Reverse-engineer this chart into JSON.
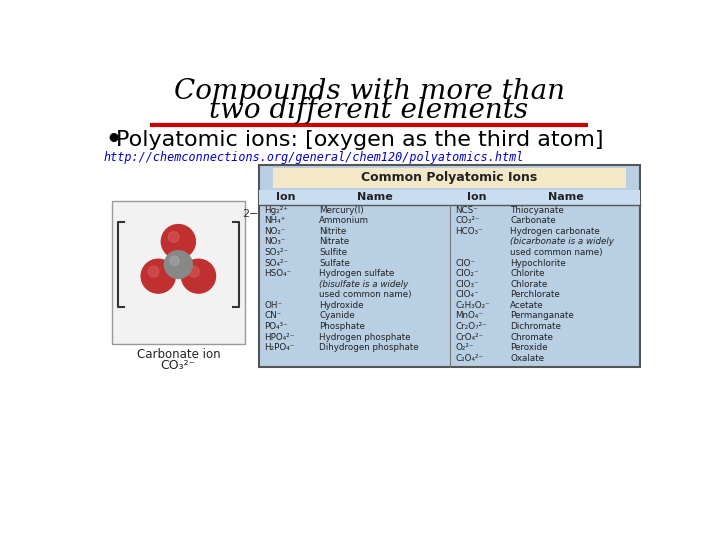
{
  "title_line1": "Compounds with more than",
  "title_line2": "two different elements",
  "bullet_text": "Polyatomic ions: [oxygen as the third atom]",
  "link_text": "http://chemconnections.org/general/chem120/polyatomics.html",
  "table_title": "Common Polyatomic Ions",
  "col_headers": [
    "Ion",
    "Name",
    "Ion",
    "Name"
  ],
  "left_ions": [
    "Hg₂²⁺",
    "NH₄⁺",
    "NO₂⁻",
    "NO₃⁻",
    "SO₃²⁻",
    "SO₄²⁻",
    "HSO₄⁻",
    "",
    "",
    "OH⁻",
    "CN⁻",
    "PO₄³⁻",
    "HPO₄²⁻",
    "H₂PO₄⁻"
  ],
  "left_names": [
    "Mercury(I)",
    "Ammonium",
    "Nitrite",
    "Nitrate",
    "Sulfite",
    "Sulfate",
    "Hydrogen sulfate",
    "(bisulfate is a widely",
    "used common name)",
    "Hydroxide",
    "Cyanide",
    "Phosphate",
    "Hydrogen phosphate",
    "Dihydrogen phosphate"
  ],
  "right_ions": [
    "NCS⁻",
    "CO₃²⁻",
    "HCO₃⁻",
    "",
    "",
    "ClO⁻",
    "ClO₂⁻",
    "ClO₃⁻",
    "ClO₄⁻",
    "C₂H₃O₂⁻",
    "MnO₄⁻",
    "Cr₂O₇²⁻",
    "CrO₄²⁻",
    "O₂²⁻",
    "C₂O₄²⁻"
  ],
  "right_names": [
    "Thiocyanate",
    "Carbonate",
    "Hydrogen carbonate",
    "(bicarbonate is a widely",
    "used common name)",
    "Hypochlorite",
    "Chlorite",
    "Chlorate",
    "Perchlorate",
    "Acetate",
    "Permanganate",
    "Dichromate",
    "Chromate",
    "Peroxide",
    "Oxalate"
  ],
  "bg_color": "#ffffff",
  "title_color": "#000000",
  "red_line_color": "#cc0000",
  "bullet_color": "#000000",
  "link_color": "#0000cc",
  "table_bg": "#b8cfe4",
  "table_header_bg": "#c8ddf0",
  "table_title_bg": "#f5e8c8",
  "table_border": "#555555",
  "carbonate_label": "Carbonate ion",
  "carbonate_formula": "CO₃²⁻"
}
